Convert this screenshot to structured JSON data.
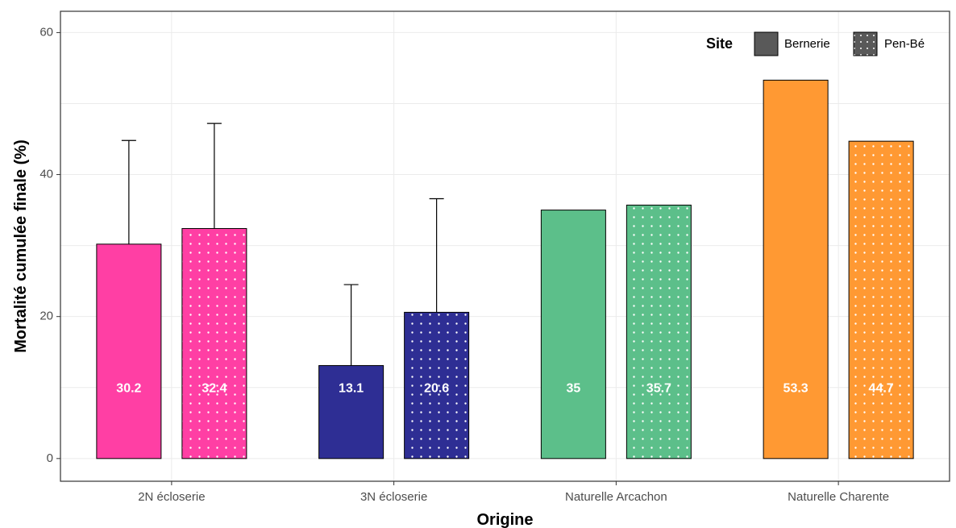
{
  "chart_data": {
    "type": "bar",
    "xlabel": "Origine",
    "ylabel": "Mortalité cumulée finale (%)",
    "ylim": [
      -3.2,
      63
    ],
    "yticks": [
      0,
      20,
      40,
      60
    ],
    "grid": true,
    "categories": [
      "2N écloserie",
      "3N écloserie",
      "Naturelle Arcachon",
      "Naturelle Charente"
    ],
    "category_colors": [
      "#ff3fa4",
      "#2e2e94",
      "#5cbf8a",
      "#ff9933"
    ],
    "series": [
      {
        "name": "Bernerie",
        "pattern": "solid",
        "values": [
          30.2,
          13.1,
          35,
          53.3
        ],
        "labels": [
          "30.2",
          "13.1",
          "35",
          "53.3"
        ],
        "error_upper": [
          44.8,
          24.5,
          null,
          null
        ]
      },
      {
        "name": "Pen-Bé",
        "pattern": "dotted",
        "values": [
          32.4,
          20.6,
          35.7,
          44.7
        ],
        "labels": [
          "32.4",
          "20.6",
          "35.7",
          "44.7"
        ],
        "error_upper": [
          47.2,
          36.6,
          null,
          null
        ]
      }
    ],
    "legend": {
      "title": "Site",
      "position": "top-right",
      "swatch_color": "#595959"
    }
  }
}
